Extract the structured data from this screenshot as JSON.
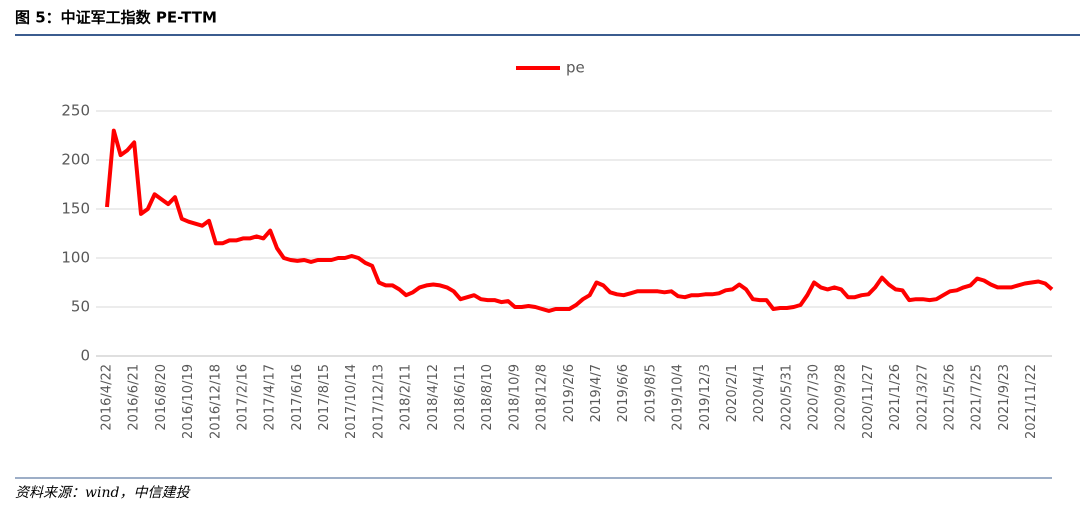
{
  "chart_data": {
    "type": "line",
    "title": "图 5：中证军工指数 PE-TTM",
    "source": "资料来源：wind，中信建投",
    "categories": [
      "2016/4/22",
      null,
      null,
      null,
      "2016/6/21",
      null,
      null,
      null,
      "2016/8/20",
      null,
      null,
      null,
      "2016/10/19",
      null,
      null,
      null,
      "2016/12/18",
      null,
      null,
      null,
      "2017/2/16",
      null,
      null,
      null,
      "2017/4/17",
      null,
      null,
      null,
      "2017/6/16",
      null,
      null,
      null,
      "2017/8/15",
      null,
      null,
      null,
      "2017/10/14",
      null,
      null,
      null,
      "2017/12/13",
      null,
      null,
      null,
      "2018/2/11",
      null,
      null,
      null,
      "2018/4/12",
      null,
      null,
      null,
      "2018/6/11",
      null,
      null,
      null,
      "2018/8/10",
      null,
      null,
      null,
      "2018/10/9",
      null,
      null,
      null,
      "2018/12/8",
      null,
      null,
      null,
      "2019/2/6",
      null,
      null,
      null,
      "2019/4/7",
      null,
      null,
      null,
      "2019/6/6",
      null,
      null,
      null,
      "2019/8/5",
      null,
      null,
      null,
      "2019/10/4",
      null,
      null,
      null,
      "2019/12/3",
      null,
      null,
      null,
      "2020/2/1",
      null,
      null,
      null,
      "2020/4/1",
      null,
      null,
      null,
      "2020/5/31",
      null,
      null,
      null,
      "2020/7/30",
      null,
      null,
      null,
      "2020/9/28",
      null,
      null,
      null,
      "2020/11/27",
      null,
      null,
      null,
      "2021/1/26",
      null,
      null,
      null,
      "2021/3/27",
      null,
      null,
      null,
      "2021/5/26",
      null,
      null,
      null,
      "2021/7/25",
      null,
      null,
      null,
      "2021/9/23",
      null,
      null,
      null,
      "2021/11/22",
      null,
      null,
      null
    ],
    "series": [
      {
        "name": "pe",
        "color": "#ff0000",
        "values": [
          152,
          230,
          205,
          210,
          218,
          145,
          150,
          165,
          160,
          155,
          162,
          140,
          137,
          135,
          133,
          138,
          115,
          115,
          118,
          118,
          120,
          120,
          122,
          120,
          128,
          110,
          100,
          98,
          97,
          98,
          96,
          98,
          98,
          98,
          100,
          100,
          102,
          100,
          95,
          92,
          75,
          72,
          72,
          68,
          62,
          65,
          70,
          72,
          73,
          72,
          70,
          66,
          58,
          60,
          62,
          58,
          57,
          57,
          55,
          56,
          50,
          50,
          51,
          50,
          48,
          46,
          48,
          48,
          48,
          52,
          58,
          62,
          75,
          72,
          65,
          63,
          62,
          64,
          66,
          66,
          66,
          66,
          65,
          66,
          61,
          60,
          62,
          62,
          63,
          63,
          64,
          67,
          68,
          73,
          68,
          58,
          57,
          57,
          48,
          49,
          49,
          50,
          52,
          62,
          75,
          70,
          68,
          70,
          68,
          60,
          60,
          62,
          63,
          70,
          80,
          73,
          68,
          67,
          57,
          58,
          58,
          57,
          58,
          62,
          66,
          67,
          70,
          72,
          79,
          77,
          73,
          70,
          70,
          70,
          72,
          74,
          75,
          76,
          74,
          68
        ]
      }
    ],
    "ylim": [
      0,
      250
    ],
    "yticks": [
      0,
      50,
      100,
      150,
      200,
      250
    ],
    "grid": true,
    "legend": "top"
  }
}
